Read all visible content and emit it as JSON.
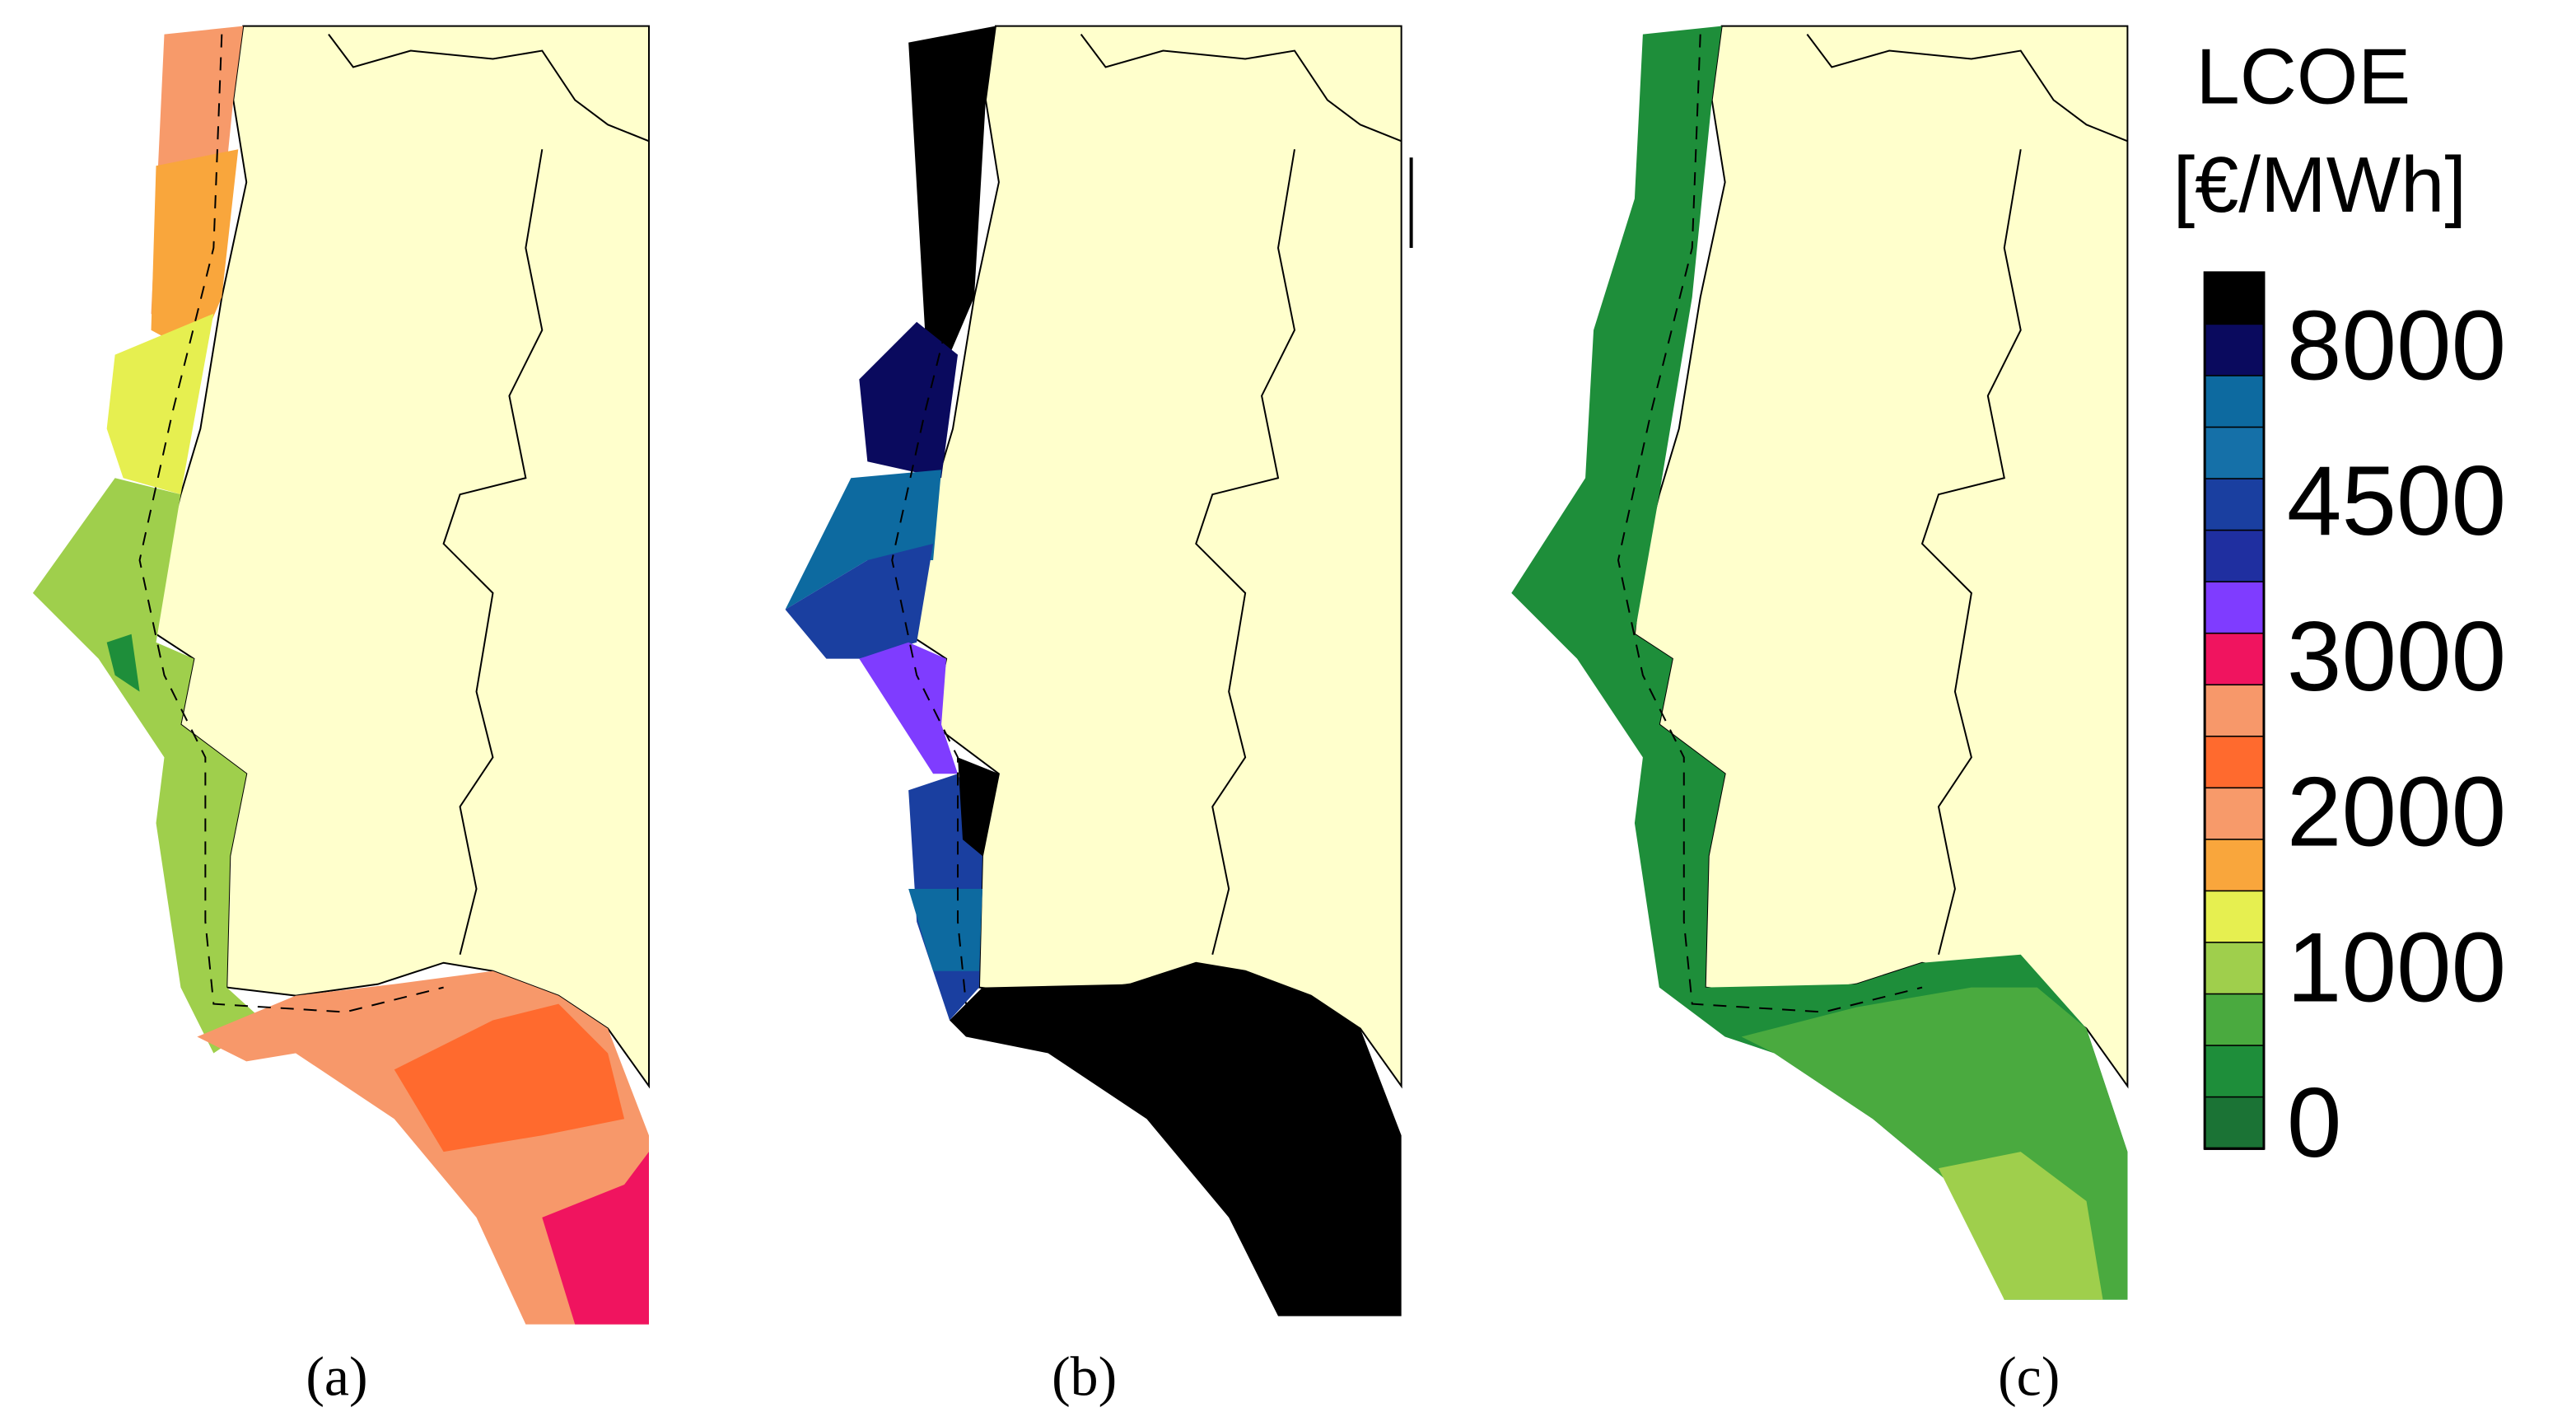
{
  "panels": [
    {
      "label": "(a)"
    },
    {
      "label": "(b)"
    },
    {
      "label": "(c)"
    }
  ],
  "legend": {
    "title": "LCOE",
    "unit": "[€/MWh]",
    "ticks": [
      8000,
      4500,
      3000,
      2000,
      1000,
      0
    ],
    "colors": [
      "#000000",
      "#0a0a5e",
      "#0d6aa0",
      "#1570a8",
      "#1a3fa0",
      "#1f2fa0",
      "#7f3cff",
      "#f0145f",
      "#f7986a",
      "#ff6a2e",
      "#f79a6a",
      "#f9a63c",
      "#e6ef50",
      "#9fcf4c",
      "#4aaa3f",
      "#1e8e3a",
      "#1b7335"
    ]
  }
}
